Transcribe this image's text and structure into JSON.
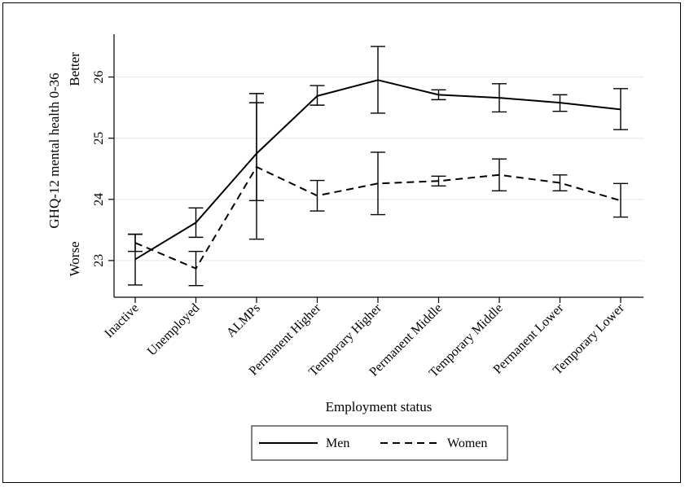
{
  "chart_data": {
    "type": "line",
    "xlabel": "Employment status",
    "ylabel": "GHQ-12 mental health 0-36",
    "ylabel_high": "Better",
    "ylabel_low": "Worse",
    "categories": [
      "Inactive",
      "Unemployed",
      "ALMPs",
      "Permanent Higher",
      "Temporary Higher",
      "Permanent Middle",
      "Temporary Middle",
      "Permanent Lower",
      "Temporary Lower"
    ],
    "ylim": [
      22.4,
      26.7
    ],
    "yticks": [
      23,
      24,
      25,
      26
    ],
    "grid": true,
    "legend_position": "bottom",
    "series": [
      {
        "name": "Men",
        "style": "solid",
        "values": [
          23.02,
          23.62,
          24.75,
          25.69,
          25.95,
          25.71,
          25.66,
          25.58,
          25.47
        ],
        "ci_low": [
          22.6,
          23.38,
          23.35,
          25.54,
          25.41,
          25.63,
          25.43,
          25.44,
          25.14
        ],
        "ci_high": [
          23.43,
          23.86,
          25.58,
          25.86,
          26.5,
          25.79,
          25.89,
          25.71,
          25.81
        ]
      },
      {
        "name": "Women",
        "style": "dashed",
        "values": [
          23.29,
          22.87,
          24.53,
          24.06,
          24.26,
          24.3,
          24.4,
          24.27,
          23.98
        ],
        "ci_low": [
          23.15,
          22.59,
          23.98,
          23.81,
          23.75,
          24.22,
          24.14,
          24.14,
          23.71
        ],
        "ci_high": [
          23.43,
          23.15,
          25.73,
          24.31,
          24.77,
          24.38,
          24.66,
          24.4,
          24.26
        ]
      }
    ]
  }
}
